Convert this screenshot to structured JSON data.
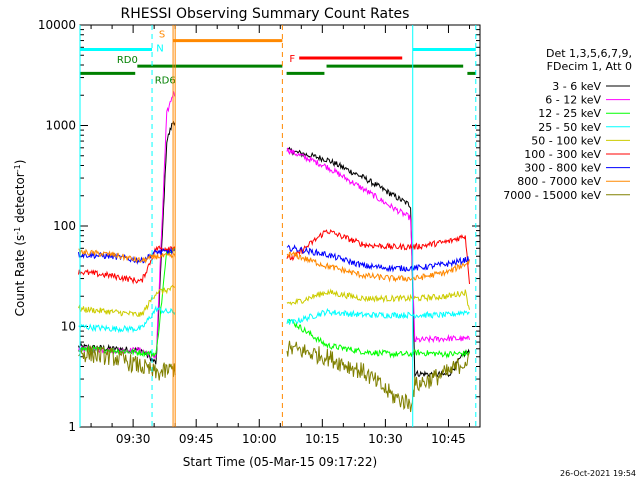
{
  "chart_data": {
    "type": "line",
    "title": "RHESSI Observing Summary Count Rates",
    "xlabel": "Start Time (05-Mar-15 09:17:22)",
    "ylabel": "Count Rate (s⁻¹ detector⁻¹)",
    "ylabel_parts": {
      "main": "Count Rate (s",
      "sup1": "-1",
      "mid": " detector",
      "sup2": "-1",
      "end": ")"
    },
    "yscale": "log",
    "xlim": [
      "09:17:22",
      "10:52:30"
    ],
    "ylim": [
      1,
      10000
    ],
    "xticks": [
      "09:30",
      "09:45",
      "10:00",
      "10:15",
      "10:30",
      "10:45"
    ],
    "yticks": [
      "1",
      "10",
      "100",
      "1000",
      "10000"
    ],
    "timestamp": "26-Oct-2021 19:54",
    "legend_title": [
      "Det 1,3,5,6,7,9,",
      "FDecim 1, Att 0"
    ],
    "legend_placement": "right",
    "series": [
      {
        "name": "3 - 6 keV",
        "color": "#000000",
        "times": [
          "09:17",
          "09:25",
          "09:32",
          "09:35:30",
          "09:38",
          "09:39:30",
          "10:08",
          "10:16",
          "10:25",
          "10:32",
          "10:36",
          "10:37",
          "10:45",
          "10:49",
          "10:50"
        ],
        "values": [
          6.3,
          6,
          5.8,
          4.3,
          700,
          1100,
          550,
          460,
          300,
          200,
          160,
          3.4,
          3.3,
          5.5,
          5.5
        ]
      },
      {
        "name": "6 - 12 keV",
        "color": "#ff00ff",
        "times": [
          "09:17",
          "09:25",
          "09:32",
          "09:35:30",
          "09:38",
          "09:39:30",
          "10:08",
          "10:16",
          "10:25",
          "10:32",
          "10:36",
          "10:37",
          "10:45",
          "10:49",
          "10:50"
        ],
        "values": [
          6,
          5.8,
          5.8,
          5,
          1300,
          2100,
          540,
          390,
          230,
          150,
          120,
          7.3,
          7.6,
          7.5,
          7.5
        ]
      },
      {
        "name": "12 - 25 keV",
        "color": "#00ff00",
        "times": [
          "09:17",
          "09:25",
          "09:32",
          "09:35:30",
          "09:38",
          "09:39:30",
          "10:08",
          "10:16",
          "10:25",
          "10:32",
          "10:36",
          "10:37",
          "10:45",
          "10:49",
          "10:50"
        ],
        "values": [
          6,
          5.8,
          5.5,
          5.3,
          55,
          60,
          11,
          6.5,
          5.6,
          5.3,
          5.3,
          5.5,
          5.3,
          5.4,
          5.4
        ]
      },
      {
        "name": "25 - 50 keV",
        "color": "#00ffff",
        "times": [
          "09:17",
          "09:25",
          "09:32",
          "09:35:30",
          "09:38",
          "09:39:30",
          "10:08",
          "10:16",
          "10:25",
          "10:32",
          "10:36",
          "10:37",
          "10:45",
          "10:49",
          "10:50"
        ],
        "values": [
          10,
          9.5,
          9.5,
          15,
          14,
          14,
          11,
          14,
          13,
          13,
          13,
          13,
          13,
          14,
          14
        ]
      },
      {
        "name": "50 - 100 keV",
        "color": "#cccc00",
        "times": [
          "09:17",
          "09:25",
          "09:32",
          "09:35:30",
          "09:38",
          "09:39:30",
          "10:08",
          "10:16",
          "10:25",
          "10:32",
          "10:36",
          "10:37",
          "10:45",
          "10:49",
          "10:50"
        ],
        "values": [
          15,
          14,
          13,
          22,
          23,
          24,
          17,
          22,
          19,
          19,
          19,
          19,
          20,
          22,
          15
        ]
      },
      {
        "name": "100 - 300 keV",
        "color": "#ff0000",
        "times": [
          "09:17",
          "09:25",
          "09:32",
          "09:35:30",
          "09:38",
          "09:39:30",
          "10:08",
          "10:16",
          "10:25",
          "10:32",
          "10:36",
          "10:37",
          "10:45",
          "10:49",
          "10:50"
        ],
        "values": [
          35,
          32,
          28,
          60,
          60,
          62,
          48,
          90,
          65,
          62,
          62,
          62,
          70,
          80,
          28
        ]
      },
      {
        "name": "300 - 800 keV",
        "color": "#0000ff",
        "times": [
          "09:17",
          "09:25",
          "09:32",
          "09:35:30",
          "09:38",
          "09:39:30",
          "10:08",
          "10:16",
          "10:25",
          "10:32",
          "10:36",
          "10:37",
          "10:45",
          "10:49",
          "10:50"
        ],
        "values": [
          52,
          50,
          45,
          55,
          55,
          56,
          60,
          52,
          40,
          38,
          38,
          38,
          42,
          46,
          48
        ]
      },
      {
        "name": "800 - 7000 keV",
        "color": "#ff8800",
        "times": [
          "09:17",
          "09:25",
          "09:32",
          "09:35:30",
          "09:38",
          "09:39:30",
          "10:08",
          "10:16",
          "10:25",
          "10:32",
          "10:36",
          "10:37",
          "10:45",
          "10:49",
          "10:50"
        ],
        "values": [
          55,
          52,
          45,
          50,
          50,
          50,
          52,
          40,
          32,
          30,
          30,
          30,
          35,
          42,
          45
        ]
      },
      {
        "name": "7000 - 15000 keV",
        "color": "#808000",
        "times": [
          "09:17",
          "09:25",
          "09:32",
          "09:35:30",
          "09:38",
          "09:39:30",
          "10:08",
          "10:16",
          "10:25",
          "10:32",
          "10:36",
          "10:37",
          "10:45",
          "10:49",
          "10:50"
        ],
        "values": [
          5.5,
          5,
          4,
          3.4,
          3.6,
          3.8,
          6,
          5,
          3.5,
          2,
          1.7,
          2.6,
          3.5,
          4.5,
          4.5
        ]
      }
    ],
    "flag_bars": [
      {
        "label": "N",
        "color": "#00ffff",
        "value": 5700,
        "spans": [
          [
            "09:17:22",
            "09:34:30"
          ],
          [
            "10:36:30",
            "10:51:30"
          ]
        ]
      },
      {
        "label": "S",
        "color": "#ff8800",
        "value": 7000,
        "spans": [
          [
            "09:39:30",
            "10:05:30"
          ]
        ]
      },
      {
        "label": "F",
        "color": "#ff0000",
        "value": 4700,
        "spans": [
          [
            "10:09:30",
            "10:34:00"
          ]
        ]
      },
      {
        "label": "RD0",
        "color": "#008000",
        "value": 3900,
        "spans": [
          [
            "09:31:00",
            "10:05:30"
          ],
          [
            "10:16:00",
            "10:48:30"
          ]
        ]
      },
      {
        "label": "RD6",
        "color": "#008000",
        "value": 3300,
        "spans": [
          [
            "09:17:22",
            "09:30:30"
          ],
          [
            "10:06:30",
            "10:15:30"
          ],
          [
            "10:49:30",
            "10:51:30"
          ]
        ]
      }
    ],
    "vertical_lines": [
      {
        "time": "09:17:22",
        "color": "#00ffff",
        "style": "solid"
      },
      {
        "time": "09:34:30",
        "color": "#00ffff",
        "style": "dashed"
      },
      {
        "time": "09:39:30",
        "color": "#ff8800",
        "style": "solid"
      },
      {
        "time": "10:05:30",
        "color": "#ff8800",
        "style": "dashed"
      },
      {
        "time": "10:36:30",
        "color": "#00ffff",
        "style": "solid"
      },
      {
        "time": "10:51:30",
        "color": "#00ffff",
        "style": "dashed"
      }
    ],
    "data_gap": [
      "09:40:00",
      "10:06:30"
    ],
    "grid": false
  }
}
